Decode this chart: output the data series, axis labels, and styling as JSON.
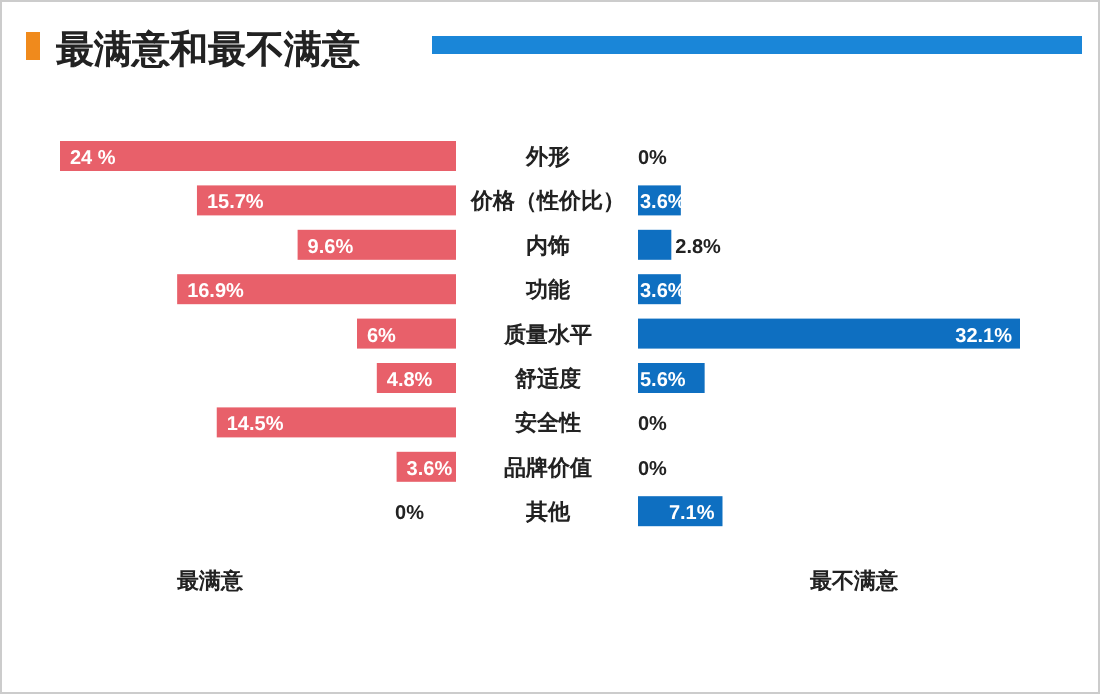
{
  "chart_data": [
    {
      "type": "bar",
      "orientation": "horizontal",
      "title": "最满意和最不满意",
      "xlabel": "最满意",
      "color": "#e8606a",
      "categories": [
        "外形",
        "价格（性价比）",
        "内饰",
        "功能",
        "质量水平",
        "舒适度",
        "安全性",
        "品牌价值",
        "其他"
      ],
      "values": [
        24,
        15.7,
        9.6,
        16.9,
        6,
        4.8,
        14.5,
        3.6,
        0
      ],
      "value_labels": [
        "24 %",
        "15.7%",
        "9.6%",
        "16.9%",
        "6%",
        "4.8%",
        "14.5%",
        "3.6%",
        "0%"
      ]
    },
    {
      "type": "bar",
      "orientation": "horizontal",
      "xlabel": "最不满意",
      "color": "#0e6fc1",
      "values": [
        0,
        3.6,
        2.8,
        3.6,
        32.1,
        5.6,
        0,
        0,
        7.1
      ],
      "value_labels": [
        "0%",
        "3.6%",
        "2.8%",
        "3.6%",
        "32.1%",
        "5.6%",
        "0%",
        "0%",
        "7.1%"
      ]
    }
  ]
}
